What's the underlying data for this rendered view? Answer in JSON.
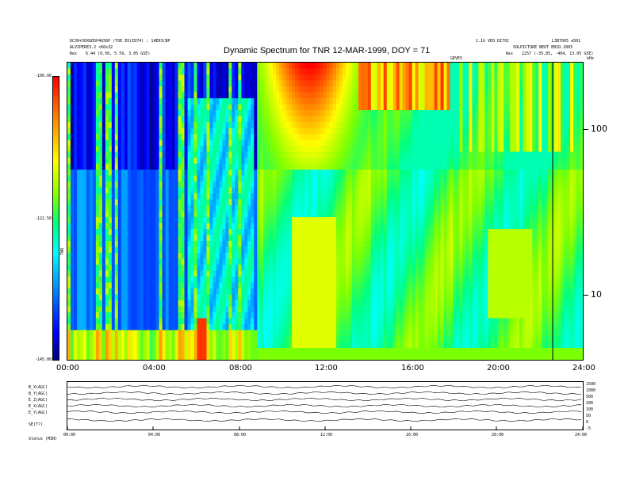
{
  "header": {
    "title": "Dynamic Spectrum for TNR 12-MAR-1999, DOY = 71",
    "left_line1": "DC30+50XGD5P4G56P (TOE EO(ID74) : 14E03(BP",
    "left_line2": "ALVIPERE3.2 <60x32",
    "left_line3_label": "Rex",
    "left_line3_value": "6.44 (0.50, 5.59, 3.05 G5E)",
    "right_line1": "1.1G VEO DI7OC",
    "right_line2": "L3B7005 e501",
    "right_line3": "SOLPICTURE BEOT EB1D.2005",
    "right_line4_label": "Rex",
    "right_line4_value": "2257 (-35.85, -404, 13.05 G5E)",
    "mid_label": "GEVES",
    "khz_label": "kHz"
  },
  "colorbar": {
    "top_label": "-100.00",
    "mid_label": "-122.50",
    "bottom_label": "-145.00",
    "axis_label": "TNR"
  },
  "chart_data": {
    "type": "heatmap",
    "title": "Dynamic Spectrum for TNR 12-MAR-1999, DOY = 71",
    "xlabel": "",
    "ylabel": "kHz",
    "x_ticks": [
      "00:00",
      "04:00",
      "08:00",
      "12:00",
      "16:00",
      "20:00",
      "24:00"
    ],
    "y_ticks": [
      "100",
      "10"
    ],
    "y_scale": "log",
    "colorbar_ticks": [
      "-100.00",
      "-122.50",
      "-145.00"
    ],
    "colormap": [
      "#000080",
      "#0000ff",
      "#0080ff",
      "#00ffff",
      "#00ff80",
      "#80ff00",
      "#ffff00",
      "#ff8000",
      "#ff0000"
    ]
  },
  "lower_panel": {
    "row_labels": [
      "B_X(AGC)",
      "B_Y(AGC)",
      "E_Z(AGC)",
      "E_X(AGC)",
      "E_Y(AGC)",
      "SE(T?)"
    ],
    "right_ticks": [
      "1500",
      "1000",
      "500",
      "200",
      "100",
      "50",
      "0",
      "-5"
    ],
    "x_ticks": [
      "00:00",
      "04:00",
      "08:00",
      "12:00",
      "16:00",
      "20:00",
      "24:00"
    ],
    "footer": "Status (MIN)"
  }
}
